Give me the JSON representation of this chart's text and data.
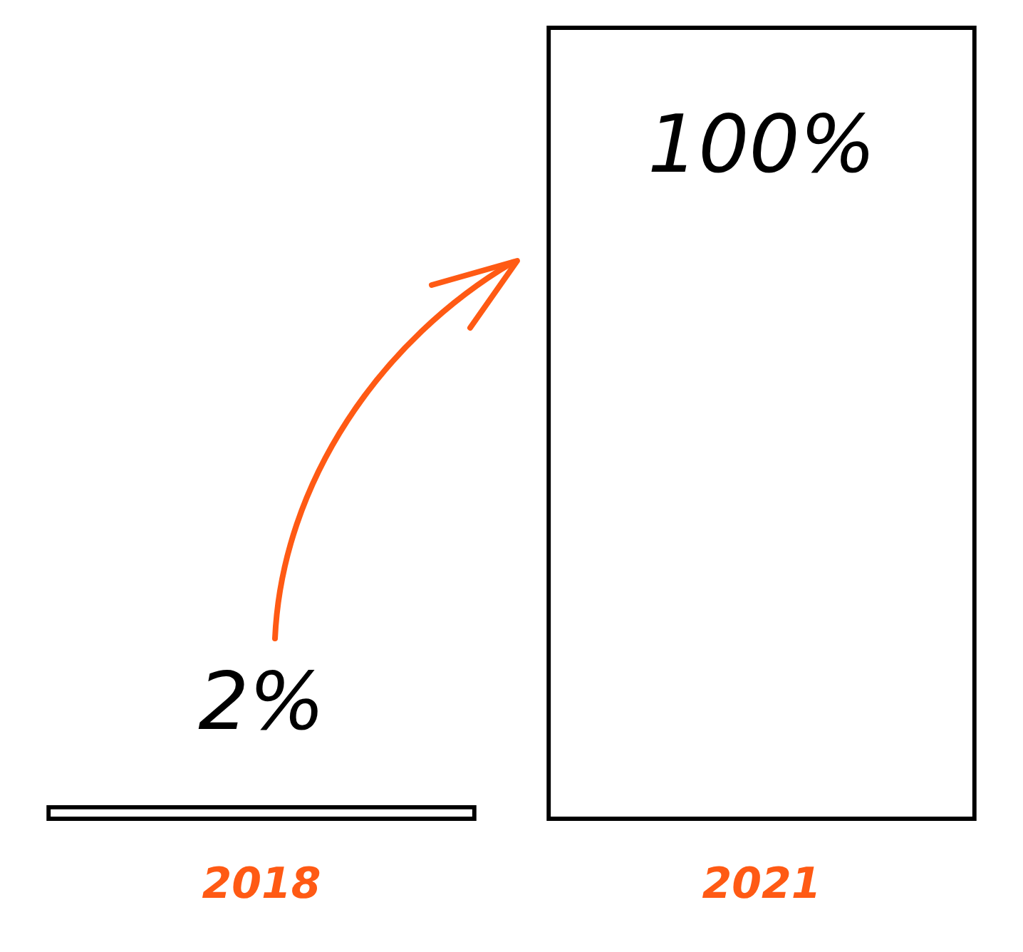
{
  "chart_data": {
    "type": "bar",
    "categories": [
      "2018",
      "2021"
    ],
    "values": [
      2,
      100
    ],
    "color": "#000000",
    "ylim": [
      0,
      100
    ],
    "value_labels": [
      "2%",
      "100%"
    ],
    "grid": false,
    "legend": false
  }
}
